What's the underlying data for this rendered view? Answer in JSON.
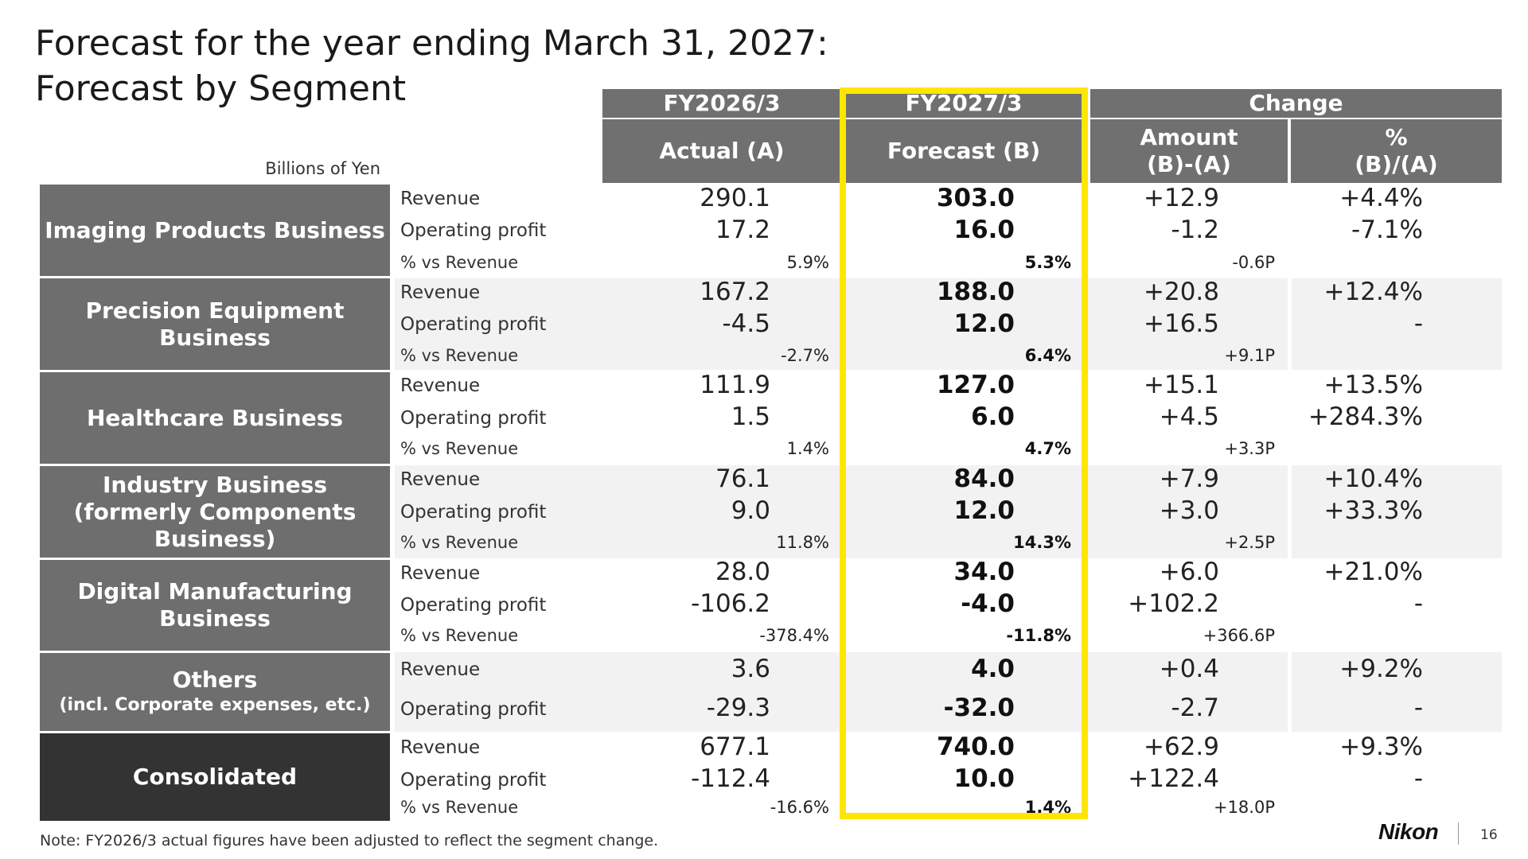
{
  "title": {
    "line1": "Forecast for the year ending March 31, 2027:",
    "line2": "Forecast by Segment"
  },
  "units": "Billions of Yen",
  "header": {
    "fy2026": "FY2026/3",
    "fy2027": "FY2027/3",
    "change": "Change",
    "actual": "Actual (A)",
    "forecast": "Forecast (B)",
    "amount_1": "Amount",
    "amount_2": "(B)-(A)",
    "pct_1": "%",
    "pct_2": "(B)/(A)"
  },
  "row_labels": {
    "revenue": "Revenue",
    "op": "Operating profit",
    "pct": "% vs Revenue"
  },
  "segments": [
    {
      "name": "Imaging Products Business",
      "rev": {
        "a": "290.1",
        "b": "303.0",
        "amt": "+12.9",
        "pct": "+4.4%"
      },
      "op": {
        "a": "17.2",
        "b": "16.0",
        "amt": "-1.2",
        "pct": "-7.1%"
      },
      "margin": {
        "a": "5.9%",
        "b": "5.3%",
        "amt": "-0.6P"
      }
    },
    {
      "name": "Precision Equipment Business",
      "rev": {
        "a": "167.2",
        "b": "188.0",
        "amt": "+20.8",
        "pct": "+12.4%"
      },
      "op": {
        "a": "-4.5",
        "b": "12.0",
        "amt": "+16.5",
        "pct": "-"
      },
      "margin": {
        "a": "-2.7%",
        "b": "6.4%",
        "amt": "+9.1P"
      }
    },
    {
      "name": "Healthcare Business",
      "rev": {
        "a": "111.9",
        "b": "127.0",
        "amt": "+15.1",
        "pct": "+13.5%"
      },
      "op": {
        "a": "1.5",
        "b": "6.0",
        "amt": "+4.5",
        "pct": "+284.3%"
      },
      "margin": {
        "a": "1.4%",
        "b": "4.7%",
        "amt": "+3.3P"
      }
    },
    {
      "name_1": "Industry Business",
      "name_2": "(formerly Components",
      "name_3": "Business)",
      "rev": {
        "a": "76.1",
        "b": "84.0",
        "amt": "+7.9",
        "pct": "+10.4%"
      },
      "op": {
        "a": "9.0",
        "b": "12.0",
        "amt": "+3.0",
        "pct": "+33.3%"
      },
      "margin": {
        "a": "11.8%",
        "b": "14.3%",
        "amt": "+2.5P"
      }
    },
    {
      "name_1": "Digital Manufacturing",
      "name_2": "Business",
      "rev": {
        "a": "28.0",
        "b": "34.0",
        "amt": "+6.0",
        "pct": "+21.0%"
      },
      "op": {
        "a": "-106.2",
        "b": "-4.0",
        "amt": "+102.2",
        "pct": "-"
      },
      "margin": {
        "a": "-378.4%",
        "b": "-11.8%",
        "amt": "+366.6P"
      }
    },
    {
      "name_1": "Others",
      "name_2": "(incl. Corporate  expenses, etc.)",
      "rev": {
        "a": "3.6",
        "b": "4.0",
        "amt": "+0.4",
        "pct": "+9.2%"
      },
      "op": {
        "a": "-29.3",
        "b": "-32.0",
        "amt": "-2.7",
        "pct": "-"
      }
    },
    {
      "name": "Consolidated",
      "rev": {
        "a": "677.1",
        "b": "740.0",
        "amt": "+62.9",
        "pct": "+9.3%"
      },
      "op": {
        "a": "-112.4",
        "b": "10.0",
        "amt": "+122.4",
        "pct": "-"
      },
      "margin": {
        "a": "-16.6%",
        "b": "1.4%",
        "amt": "+18.0P"
      }
    }
  ],
  "note": "Note: FY2026/3 actual figures have been adjusted to reflect the segment change.",
  "logo": "Nikon",
  "page_number": "16",
  "colors": {
    "header_gray": "#707070",
    "segment_gray": "#6e6e6e",
    "consolidated": "#333333",
    "band_gray": "#f2f2f2",
    "highlight": "#ffe600"
  }
}
